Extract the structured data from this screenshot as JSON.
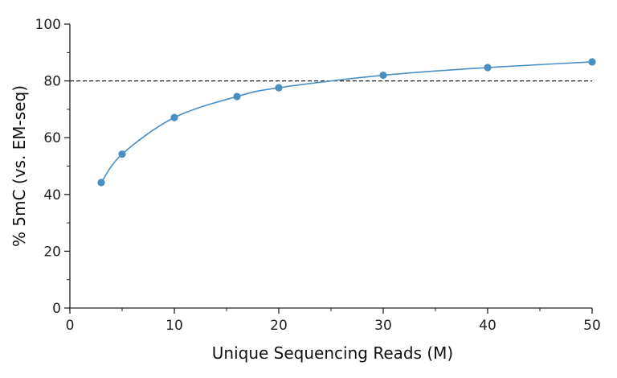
{
  "chart_data": {
    "type": "line",
    "title": "",
    "xlabel": "Unique Sequencing Reads (M)",
    "ylabel": "% 5mC (vs. EM-seq)",
    "xlim": [
      0,
      50
    ],
    "ylim": [
      0,
      100
    ],
    "x_ticks": [
      0,
      10,
      20,
      30,
      40,
      50
    ],
    "x_minor_ticks": [
      5,
      15,
      25,
      35,
      45
    ],
    "y_ticks": [
      0,
      20,
      40,
      60,
      80,
      100
    ],
    "y_minor_ticks": [
      10,
      30,
      50,
      70,
      90
    ],
    "grid": false,
    "legend": "none",
    "reference_line": {
      "y": 80,
      "style": "dashed",
      "color": "#222222"
    },
    "series": [
      {
        "color": "#4a8fc2",
        "marker": "circle",
        "points": [
          {
            "x": 3,
            "y": 44.2
          },
          {
            "x": 5,
            "y": 54.2
          },
          {
            "x": 10,
            "y": 67.1
          },
          {
            "x": 16,
            "y": 74.5
          },
          {
            "x": 20,
            "y": 77.6
          },
          {
            "x": 30,
            "y": 82.0
          },
          {
            "x": 40,
            "y": 84.7
          },
          {
            "x": 50,
            "y": 86.7
          }
        ]
      }
    ]
  }
}
